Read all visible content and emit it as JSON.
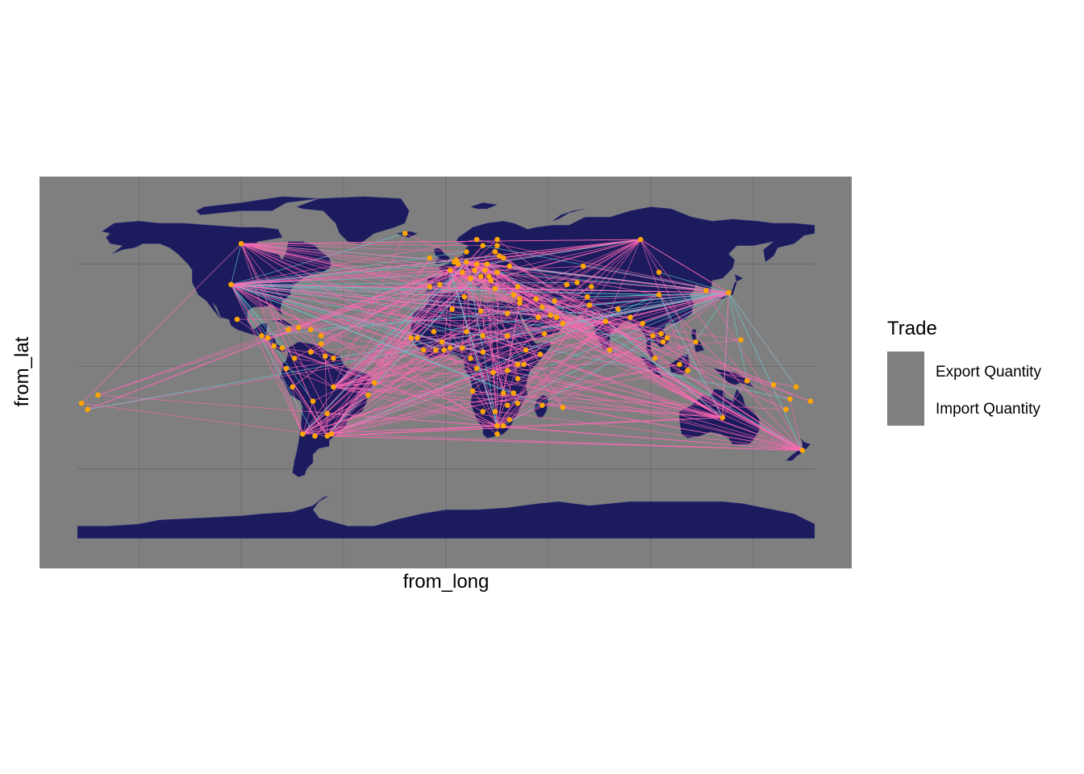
{
  "axes": {
    "x_title": "from_long",
    "y_title": "from_lat"
  },
  "legend": {
    "title": "Trade",
    "entries": [
      {
        "label": "Export Quantity",
        "color": "#66cdd0"
      },
      {
        "label": "Import Quantity",
        "color": "#ff69b4"
      }
    ]
  },
  "colors": {
    "panel_background": "#7f7f7f",
    "land": "#1b1b5e",
    "grid": "#666666",
    "points": "#ffa500",
    "export_lines": "#66cdd0",
    "import_lines": "#ff69b4"
  },
  "chart_data": {
    "type": "scatter",
    "geometry": "flow map of trade routes over a world map (equirectangular)",
    "xlim": [
      -180,
      180
    ],
    "ylim": [
      -90,
      90
    ],
    "grid": true,
    "axis_tick_labels_shown": false,
    "legend_position": "right",
    "hubs": [
      {
        "long": -100,
        "lat": 60
      },
      {
        "long": -105,
        "lat": 40
      },
      {
        "long": -55,
        "lat": -10
      },
      {
        "long": -58,
        "lat": -34
      },
      {
        "long": -70,
        "lat": -33
      },
      {
        "long": 25,
        "lat": -29
      },
      {
        "long": 135,
        "lat": -25
      },
      {
        "long": 174,
        "lat": -41
      },
      {
        "long": 138,
        "lat": 36
      },
      {
        "long": 95,
        "lat": 62
      },
      {
        "long": 20,
        "lat": 50
      },
      {
        "long": 10,
        "lat": 51
      },
      {
        "long": 2,
        "lat": 47
      },
      {
        "long": 78,
        "lat": 22
      }
    ],
    "points": [
      [
        -100,
        60
      ],
      [
        -105,
        40
      ],
      [
        -102,
        23
      ],
      [
        -90,
        15
      ],
      [
        -87,
        14
      ],
      [
        -84,
        10
      ],
      [
        -80,
        9
      ],
      [
        -77,
        18
      ],
      [
        -72,
        19
      ],
      [
        -66,
        18
      ],
      [
        -61,
        15
      ],
      [
        -61,
        11
      ],
      [
        -74,
        4
      ],
      [
        -66,
        7
      ],
      [
        -59,
        5
      ],
      [
        -55,
        4
      ],
      [
        -78,
        -1
      ],
      [
        -75,
        -10
      ],
      [
        -65,
        -17
      ],
      [
        -58,
        -23
      ],
      [
        -55,
        -10
      ],
      [
        -56,
        -33
      ],
      [
        -58,
        -34
      ],
      [
        -70,
        -33
      ],
      [
        -64,
        -34
      ],
      [
        -35,
        -8
      ],
      [
        -170,
        -14
      ],
      [
        -175,
        -21
      ],
      [
        -178,
        -18
      ],
      [
        -38,
        -14
      ],
      [
        -20,
        65
      ],
      [
        -8,
        53
      ],
      [
        -3,
        40
      ],
      [
        -8,
        39
      ],
      [
        2,
        47
      ],
      [
        4,
        51
      ],
      [
        5,
        52
      ],
      [
        6,
        50
      ],
      [
        10,
        51
      ],
      [
        14,
        47
      ],
      [
        12,
        43
      ],
      [
        8,
        46
      ],
      [
        10,
        56
      ],
      [
        15,
        62
      ],
      [
        25,
        62
      ],
      [
        18,
        59
      ],
      [
        20,
        50
      ],
      [
        19,
        47
      ],
      [
        25,
        46
      ],
      [
        22,
        42
      ],
      [
        24,
        38
      ],
      [
        15,
        50
      ],
      [
        17,
        44
      ],
      [
        21,
        44
      ],
      [
        26,
        54
      ],
      [
        24,
        56
      ],
      [
        25,
        59
      ],
      [
        31,
        49
      ],
      [
        28,
        53
      ],
      [
        35,
        39
      ],
      [
        33,
        35
      ],
      [
        36,
        33
      ],
      [
        36,
        31
      ],
      [
        44,
        33
      ],
      [
        53,
        32
      ],
      [
        45,
        24
      ],
      [
        54,
        24
      ],
      [
        51,
        25
      ],
      [
        47,
        29
      ],
      [
        57,
        21
      ],
      [
        48,
        16
      ],
      [
        67,
        49
      ],
      [
        64,
        41
      ],
      [
        71,
        39
      ],
      [
        59,
        40
      ],
      [
        69,
        34
      ],
      [
        70,
        30
      ],
      [
        84,
        28
      ],
      [
        90,
        24
      ],
      [
        78,
        22
      ],
      [
        80,
        8
      ],
      [
        96,
        21
      ],
      [
        101,
        15
      ],
      [
        105,
        16
      ],
      [
        106,
        12
      ],
      [
        108,
        14
      ],
      [
        102,
        4
      ],
      [
        114,
        1
      ],
      [
        118,
        -2
      ],
      [
        122,
        12
      ],
      [
        104,
        35
      ],
      [
        127,
        37
      ],
      [
        138,
        36
      ],
      [
        104,
        46
      ],
      [
        95,
        62
      ],
      [
        3,
        28
      ],
      [
        9,
        34
      ],
      [
        17,
        27
      ],
      [
        30,
        26
      ],
      [
        30,
        15
      ],
      [
        39,
        8
      ],
      [
        46,
        6
      ],
      [
        38,
        1
      ],
      [
        35,
        1
      ],
      [
        30,
        -2
      ],
      [
        35,
        -6
      ],
      [
        23,
        -3
      ],
      [
        15,
        -1
      ],
      [
        12,
        4
      ],
      [
        8,
        9
      ],
      [
        2,
        9
      ],
      [
        -1,
        8
      ],
      [
        -5,
        8
      ],
      [
        -11,
        8
      ],
      [
        -14,
        14
      ],
      [
        -17,
        14
      ],
      [
        -2,
        12
      ],
      [
        -6,
        17
      ],
      [
        10,
        17
      ],
      [
        18,
        15
      ],
      [
        18,
        7
      ],
      [
        13,
        -12
      ],
      [
        28,
        -13
      ],
      [
        30,
        -19
      ],
      [
        24,
        -22
      ],
      [
        35,
        -18
      ],
      [
        33,
        -13
      ],
      [
        18,
        -22
      ],
      [
        31,
        -26
      ],
      [
        28,
        -29
      ],
      [
        25,
        -29
      ],
      [
        25,
        -33
      ],
      [
        47,
        -19
      ],
      [
        57,
        -20
      ],
      [
        135,
        -25
      ],
      [
        147,
        -7
      ],
      [
        160,
        -9
      ],
      [
        166,
        -21
      ],
      [
        168,
        -16
      ],
      [
        178,
        -17
      ],
      [
        174,
        -41
      ],
      [
        171,
        -10
      ],
      [
        144,
        13
      ]
    ],
    "import_routes": [
      [
        -105,
        40,
        20,
        50
      ],
      [
        -105,
        40,
        95,
        62
      ],
      [
        -105,
        40,
        138,
        36
      ],
      [
        -105,
        40,
        135,
        -25
      ],
      [
        -105,
        40,
        -58,
        -34
      ],
      [
        -105,
        40,
        25,
        -29
      ],
      [
        -105,
        40,
        78,
        22
      ],
      [
        -105,
        40,
        2,
        47
      ],
      [
        -100,
        60,
        10,
        51
      ],
      [
        -100,
        60,
        95,
        62
      ],
      [
        -100,
        60,
        2,
        47
      ],
      [
        -100,
        60,
        -58,
        -34
      ],
      [
        -58,
        -34,
        10,
        51
      ],
      [
        -58,
        -34,
        78,
        22
      ],
      [
        -58,
        -34,
        135,
        -25
      ],
      [
        -58,
        -34,
        2,
        47
      ],
      [
        -70,
        -33,
        20,
        50
      ],
      [
        -70,
        -33,
        138,
        36
      ],
      [
        -70,
        -33,
        -105,
        40
      ],
      [
        -55,
        -10,
        104,
        35
      ],
      [
        -55,
        -10,
        20,
        50
      ],
      [
        -55,
        -10,
        2,
        47
      ],
      [
        -55,
        -10,
        138,
        36
      ],
      [
        25,
        -29,
        20,
        50
      ],
      [
        25,
        -29,
        138,
        36
      ],
      [
        25,
        -29,
        -105,
        40
      ],
      [
        25,
        -29,
        174,
        -41
      ],
      [
        25,
        -29,
        78,
        22
      ],
      [
        135,
        -25,
        2,
        47
      ],
      [
        135,
        -25,
        10,
        51
      ],
      [
        135,
        -25,
        -58,
        -34
      ],
      [
        135,
        -25,
        138,
        36
      ],
      [
        135,
        -25,
        20,
        50
      ],
      [
        174,
        -41,
        10,
        51
      ],
      [
        174,
        -41,
        -58,
        -34
      ],
      [
        174,
        -41,
        78,
        22
      ],
      [
        174,
        -41,
        2,
        47
      ],
      [
        174,
        -41,
        104,
        35
      ],
      [
        138,
        36,
        10,
        51
      ],
      [
        138,
        36,
        -105,
        40
      ],
      [
        138,
        36,
        2,
        47
      ],
      [
        138,
        36,
        95,
        62
      ],
      [
        95,
        62,
        -105,
        40
      ],
      [
        95,
        62,
        10,
        51
      ],
      [
        95,
        62,
        -100,
        60
      ],
      [
        95,
        62,
        138,
        36
      ],
      [
        20,
        50,
        104,
        35
      ],
      [
        20,
        50,
        -66,
        7
      ],
      [
        20,
        50,
        45,
        24
      ],
      [
        20,
        50,
        -170,
        -14
      ],
      [
        10,
        51,
        -175,
        -21
      ],
      [
        10,
        51,
        -77,
        18
      ],
      [
        10,
        51,
        96,
        21
      ],
      [
        10,
        51,
        166,
        -21
      ],
      [
        2,
        47,
        -75,
        -10
      ],
      [
        2,
        47,
        122,
        12
      ],
      [
        2,
        47,
        39,
        8
      ],
      [
        2,
        47,
        57,
        -20
      ],
      [
        78,
        22,
        -105,
        40
      ],
      [
        78,
        22,
        10,
        51
      ],
      [
        78,
        22,
        -58,
        -34
      ],
      [
        78,
        22,
        174,
        -41
      ]
    ],
    "export_routes": [
      [
        -105,
        40,
        10,
        51
      ],
      [
        -105,
        40,
        104,
        35
      ],
      [
        -58,
        -34,
        20,
        50
      ],
      [
        -58,
        -34,
        104,
        35
      ],
      [
        -55,
        -10,
        10,
        51
      ],
      [
        25,
        -29,
        10,
        51
      ],
      [
        25,
        -29,
        2,
        47
      ],
      [
        135,
        -25,
        104,
        35
      ],
      [
        174,
        -41,
        20,
        50
      ],
      [
        174,
        -41,
        138,
        36
      ],
      [
        138,
        36,
        135,
        -25
      ],
      [
        95,
        62,
        20,
        50
      ],
      [
        20,
        50,
        -100,
        60
      ],
      [
        10,
        51,
        -58,
        -34
      ],
      [
        2,
        47,
        25,
        -29
      ],
      [
        78,
        22,
        135,
        -25
      ],
      [
        -70,
        -33,
        10,
        51
      ]
    ]
  }
}
